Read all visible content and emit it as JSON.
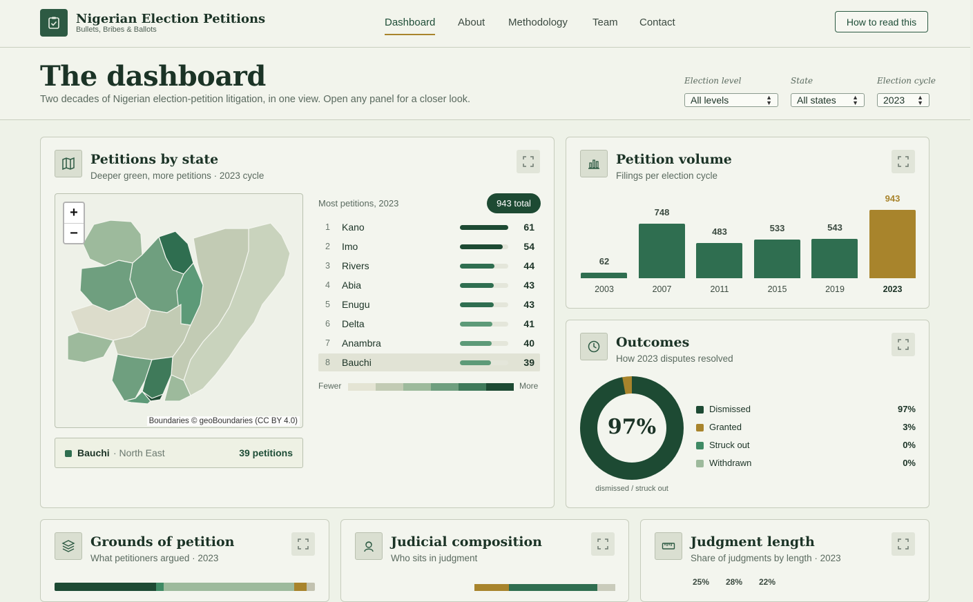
{
  "brand": {
    "title": "Nigerian Election Petitions",
    "subtitle": "Bullets, Bribes & Ballots"
  },
  "nav": [
    "Dashboard",
    "About",
    "Methodology",
    "Team",
    "Contact"
  ],
  "nav_active": "Dashboard",
  "howto_label": "How to read this",
  "hero": {
    "title": "The dashboard",
    "description": "Two decades of Nigerian election-petition litigation, in one view. Open any panel for a closer look."
  },
  "filters": [
    {
      "label": "Election level",
      "value": "All levels"
    },
    {
      "label": "State",
      "value": "All states"
    },
    {
      "label": "Election cycle",
      "value": "2023"
    }
  ],
  "colors": {
    "dark_green": "#1d4a33",
    "green": "#2f6e50",
    "gold": "#a8842c",
    "bg": "#eef2e8"
  },
  "states_card": {
    "title": "Petitions by state",
    "subtitle": "Deeper green, more petitions · 2023 cycle",
    "zoom_in": "+",
    "zoom_out": "−",
    "attribution": "Boundaries © geoBoundaries (CC BY 4.0)",
    "ranking_title": "Most petitions, 2023",
    "total": "943 total",
    "rows": [
      {
        "rank": "1",
        "name": "Kano",
        "value": "61",
        "share": 1.0,
        "color": "#1d4a33"
      },
      {
        "rank": "2",
        "name": "Imo",
        "value": "54",
        "share": 0.885,
        "color": "#1d4a33"
      },
      {
        "rank": "3",
        "name": "Rivers",
        "value": "44",
        "share": 0.72,
        "color": "#2f6e50"
      },
      {
        "rank": "4",
        "name": "Abia",
        "value": "43",
        "share": 0.705,
        "color": "#2f6e50"
      },
      {
        "rank": "5",
        "name": "Enugu",
        "value": "43",
        "share": 0.705,
        "color": "#2f6e50"
      },
      {
        "rank": "6",
        "name": "Delta",
        "value": "41",
        "share": 0.672,
        "color": "#5d9a78"
      },
      {
        "rank": "7",
        "name": "Anambra",
        "value": "40",
        "share": 0.656,
        "color": "#5d9a78"
      },
      {
        "rank": "8",
        "name": "Bauchi",
        "value": "39",
        "share": 0.639,
        "color": "#5d9a78"
      }
    ],
    "legend_low": "Fewer",
    "legend_high": "More",
    "legend_colors": [
      "#e4e4d4",
      "#c2cbb4",
      "#9dba9c",
      "#6f9f7f",
      "#3f7a5a",
      "#1d4a33"
    ],
    "selected": {
      "name": "Bauchi",
      "region": "· North East",
      "count": "39 petitions"
    }
  },
  "volume_card": {
    "title": "Petition volume",
    "subtitle": "Filings per election cycle"
  },
  "chart_data": {
    "type": "bar",
    "categories": [
      "2003",
      "2007",
      "2011",
      "2015",
      "2019",
      "2023"
    ],
    "values": [
      62,
      748,
      483,
      533,
      543,
      943
    ],
    "highlight": "2023"
  },
  "outcomes_card": {
    "title": "Outcomes",
    "subtitle": "How 2023 disputes resolved",
    "center": "97%",
    "caption": "dismissed / struck out",
    "items": [
      {
        "label": "Dismissed",
        "value": "97%",
        "color": "#1d4a33"
      },
      {
        "label": "Granted",
        "value": "3%",
        "color": "#a8842c"
      },
      {
        "label": "Struck out",
        "value": "0%",
        "color": "#3f8a64"
      },
      {
        "label": "Withdrawn",
        "value": "0%",
        "color": "#9dba9c"
      }
    ]
  },
  "grounds_card": {
    "title": "Grounds of petition",
    "subtitle": "What petitioners argued · 2023"
  },
  "judicial_card": {
    "title": "Judicial composition",
    "subtitle": "Who sits in judgment"
  },
  "judgment_card": {
    "title": "Judgment length",
    "subtitle": "Share of judgments by length · 2023",
    "values": [
      "25%",
      "28%",
      "22%"
    ]
  }
}
